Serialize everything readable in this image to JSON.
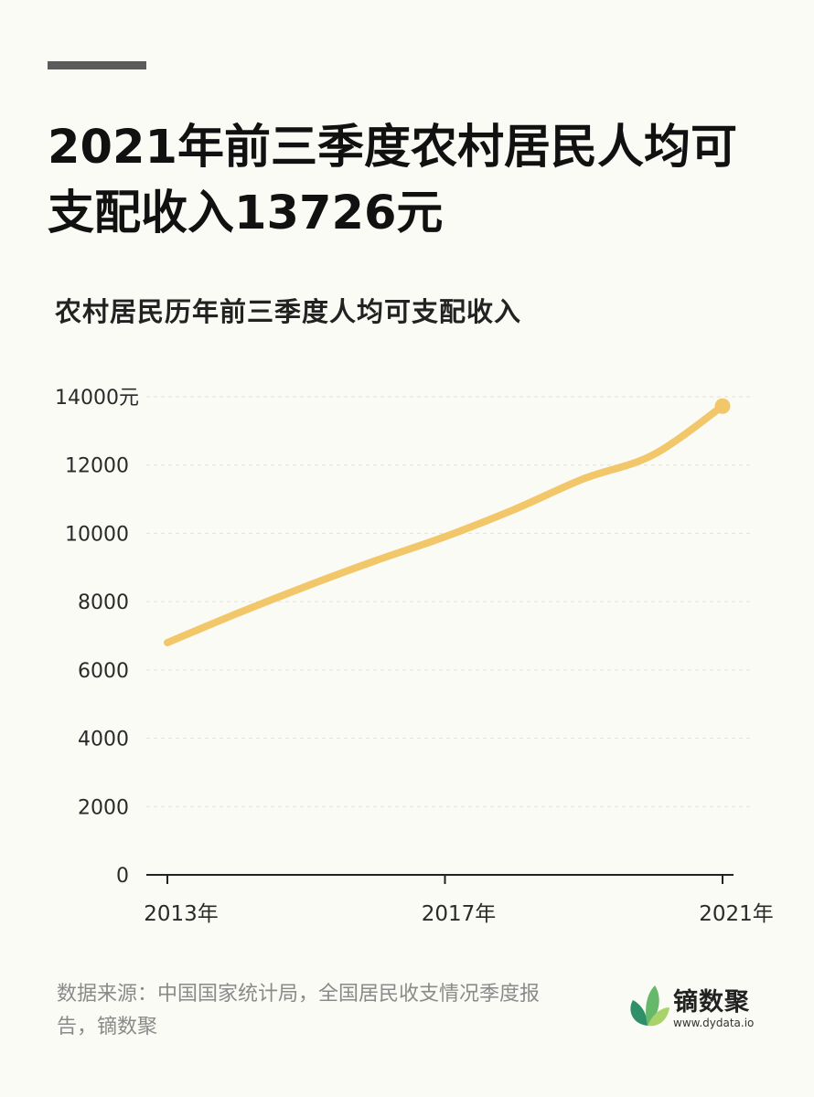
{
  "title": "2021年前三季度农村居民人均可支配收入13726元",
  "subtitle": "农村居民历年前三季度人均可支配收入",
  "source": "数据来源：中国国家统计局，全国居民收支情况季度报告，镝数聚",
  "logo": {
    "name": "镝数聚",
    "url": "www.dydata.io"
  },
  "colors": {
    "line": "#f2c76a",
    "background": "#fbfbf5",
    "grid": "#e2e2d8",
    "axis": "#222222"
  },
  "chart_data": {
    "type": "line",
    "x": [
      2013,
      2014,
      2015,
      2016,
      2017,
      2018,
      2019,
      2020,
      2021
    ],
    "series": [
      {
        "values": [
          6800,
          7650,
          8450,
          9200,
          9900,
          10700,
          11600,
          12300,
          13726
        ]
      }
    ],
    "ylim": [
      0,
      14000
    ],
    "yticks": [
      0,
      2000,
      4000,
      6000,
      8000,
      10000,
      12000,
      14000
    ],
    "ytick_labels": [
      "0",
      "2000",
      "4000",
      "6000",
      "8000",
      "10000",
      "12000",
      "14000元"
    ],
    "xticks": [
      2013,
      2017,
      2021
    ],
    "xtick_labels": [
      "2013年",
      "2017年",
      "2021年"
    ],
    "grid": true,
    "end_marker": true
  }
}
